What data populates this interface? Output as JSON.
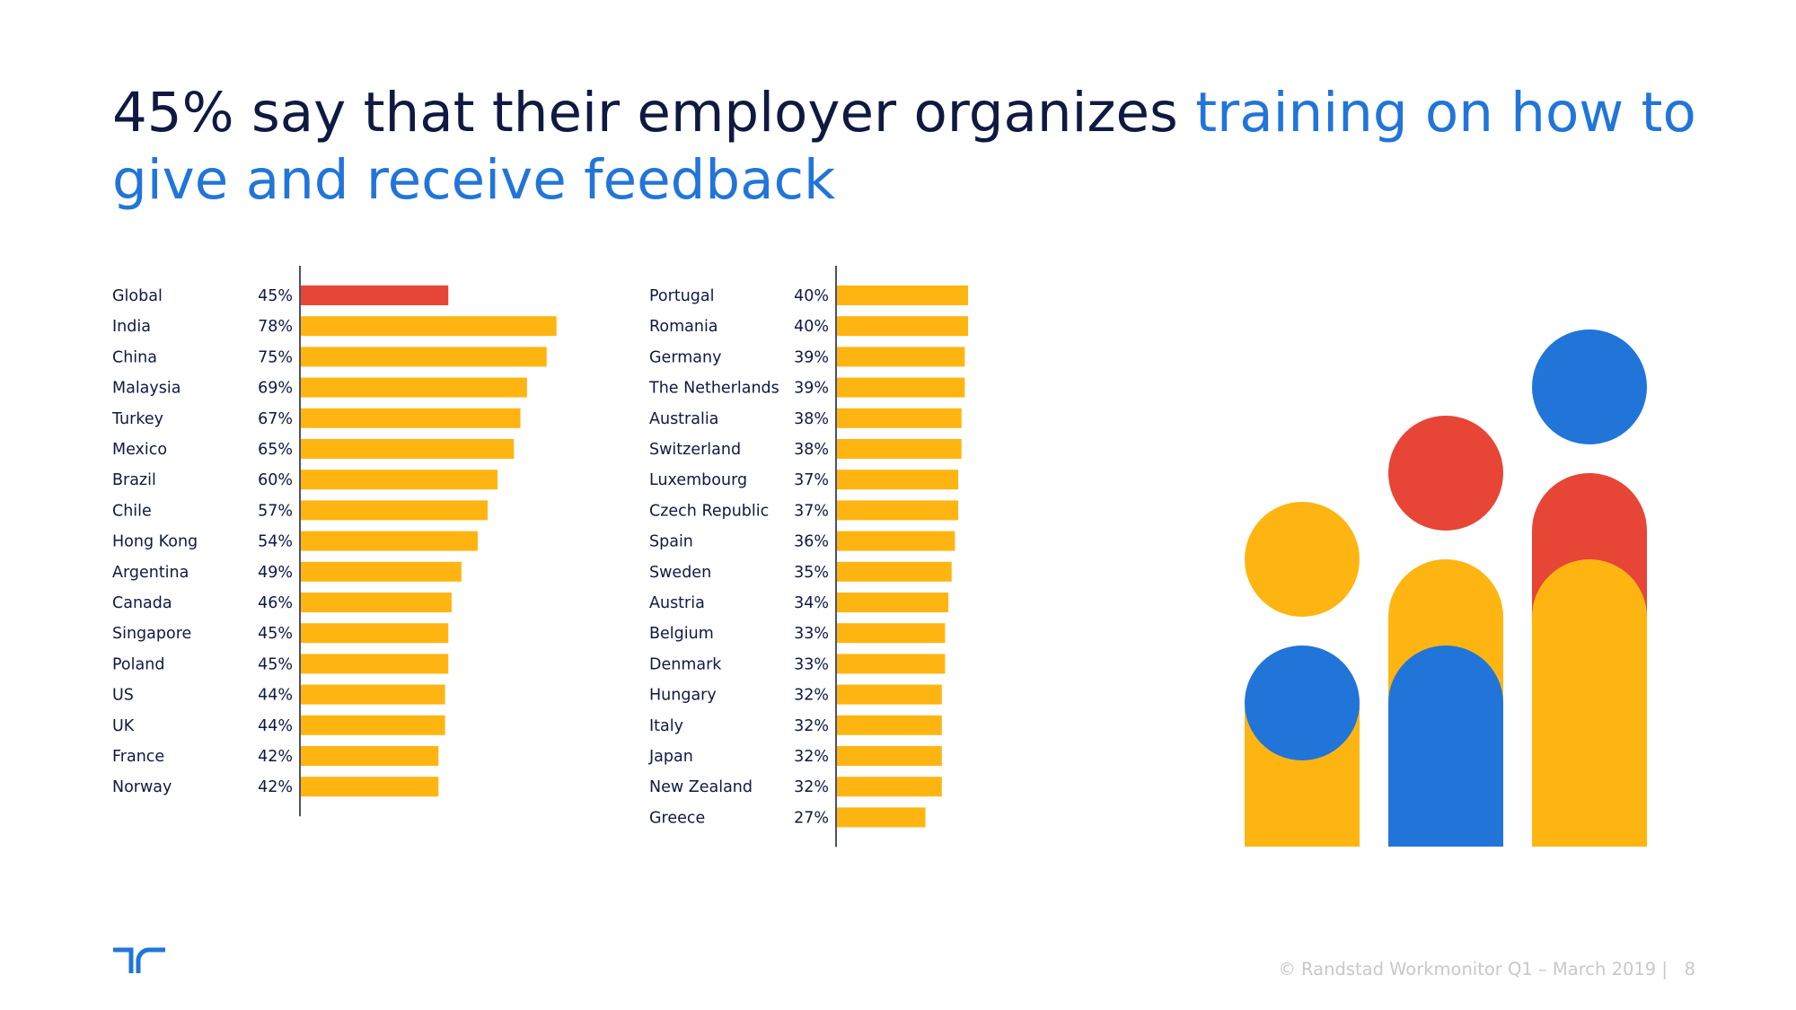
{
  "title": {
    "part1": "45% say that their employer organizes ",
    "part2": "training on how to give and receive feedback"
  },
  "colors": {
    "navy": "#0f1941",
    "blue": "#2175d9",
    "yellow": "#ffb511",
    "red": "#e74536"
  },
  "chart_data": [
    {
      "type": "bar",
      "orientation": "horizontal",
      "title": "",
      "xlabel": "",
      "ylabel": "",
      "xlim": [
        0,
        100
      ],
      "highlight": "Global",
      "categories": [
        "Global",
        "India",
        "China",
        "Malaysia",
        "Turkey",
        "Mexico",
        "Brazil",
        "Chile",
        "Hong Kong",
        "Argentina",
        "Canada",
        "Singapore",
        "Poland",
        "US",
        "UK",
        "France",
        "Norway"
      ],
      "values": [
        45,
        78,
        75,
        69,
        67,
        65,
        60,
        57,
        54,
        49,
        46,
        45,
        45,
        44,
        44,
        42,
        42
      ],
      "value_labels": [
        "45%",
        "78%",
        "75%",
        "69%",
        "67%",
        "65%",
        "60%",
        "57%",
        "54%",
        "49%",
        "46%",
        "45%",
        "45%",
        "44%",
        "44%",
        "42%",
        "42%"
      ]
    },
    {
      "type": "bar",
      "orientation": "horizontal",
      "title": "",
      "xlabel": "",
      "ylabel": "",
      "xlim": [
        0,
        100
      ],
      "categories": [
        "Portugal",
        "Romania",
        "Germany",
        "The Netherlands",
        "Australia",
        "Switzerland",
        "Luxembourg",
        "Czech Republic",
        "Spain",
        "Sweden",
        "Austria",
        "Belgium",
        "Denmark",
        "Hungary",
        "Italy",
        "Japan",
        "New Zealand",
        "Greece"
      ],
      "values": [
        40,
        40,
        39,
        39,
        38,
        38,
        37,
        37,
        36,
        35,
        34,
        33,
        33,
        32,
        32,
        32,
        32,
        27
      ],
      "value_labels": [
        "40%",
        "40%",
        "39%",
        "39%",
        "38%",
        "38%",
        "37%",
        "37%",
        "36%",
        "35%",
        "34%",
        "33%",
        "33%",
        "32%",
        "32%",
        "32%",
        "32%",
        "27%"
      ]
    }
  ],
  "footer": {
    "source": "© Randstad Workmonitor Q1 – March 2019 |",
    "page": "8"
  }
}
